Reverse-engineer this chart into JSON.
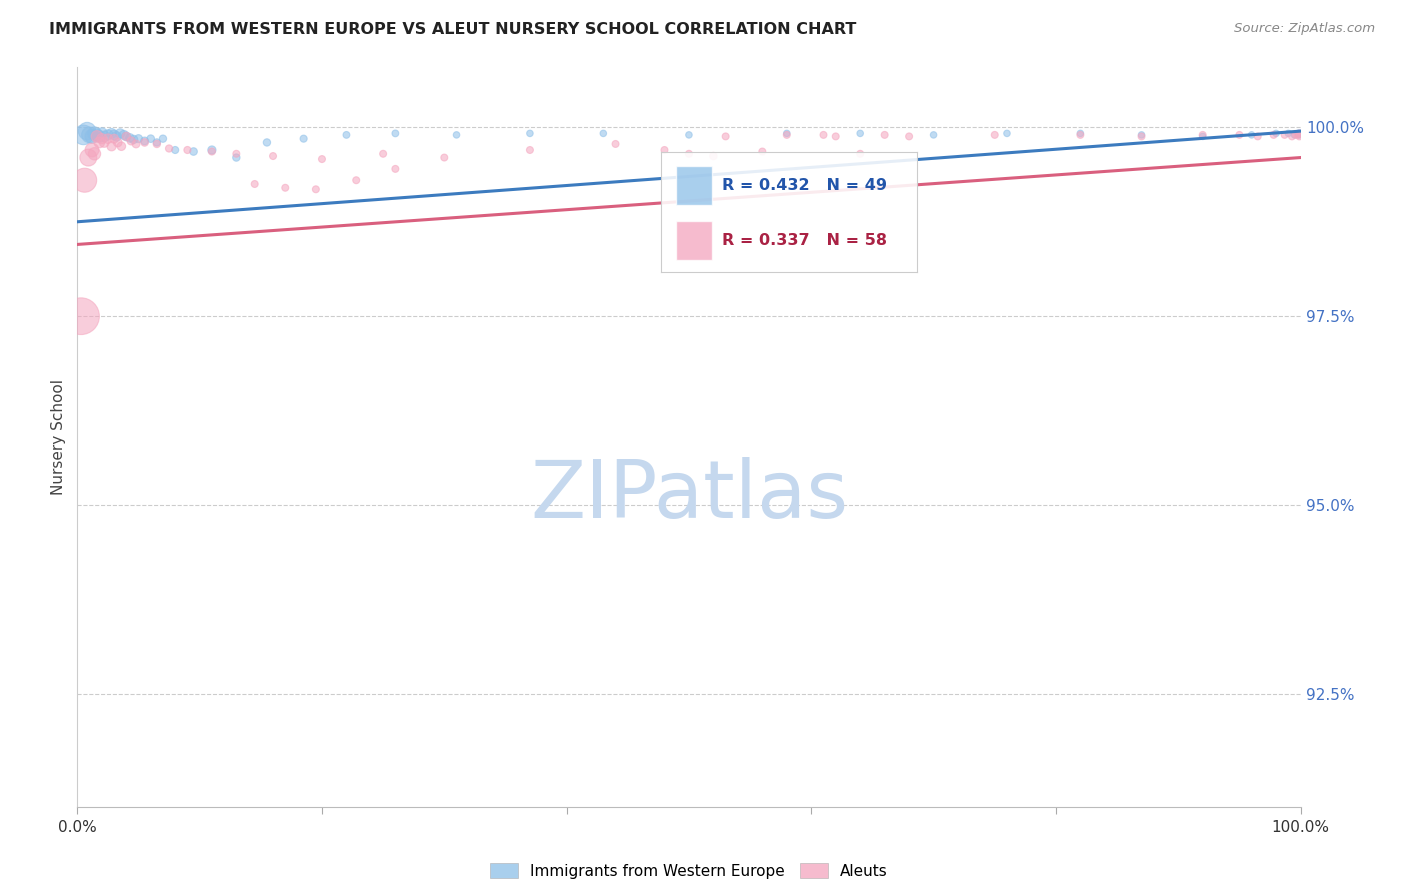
{
  "title": "IMMIGRANTS FROM WESTERN EUROPE VS ALEUT NURSERY SCHOOL CORRELATION CHART",
  "source": "Source: ZipAtlas.com",
  "ylabel": "Nursery School",
  "ytick_labels": [
    "100.0%",
    "97.5%",
    "95.0%",
    "92.5%"
  ],
  "ytick_values": [
    1.0,
    0.975,
    0.95,
    0.925
  ],
  "ymin": 0.91,
  "ymax": 1.008,
  "xmin": 0.0,
  "xmax": 1.0,
  "legend_blue_R": "0.432",
  "legend_blue_N": "49",
  "legend_pink_R": "0.337",
  "legend_pink_N": "58",
  "blue_color": "#8dbfe8",
  "pink_color": "#f4a5be",
  "blue_line_color": "#3c7bbf",
  "pink_line_color": "#d95f7e",
  "blue_line_x": [
    0.0,
    1.0
  ],
  "blue_line_y": [
    0.9875,
    0.9995
  ],
  "pink_line_x": [
    0.0,
    1.0
  ],
  "pink_line_y": [
    0.9845,
    0.996
  ],
  "watermark_text": "ZIPatlas",
  "watermark_color": "#c5d8ee",
  "blue_scatter_x": [
    0.005,
    0.008,
    0.01,
    0.012,
    0.014,
    0.016,
    0.018,
    0.02,
    0.022,
    0.025,
    0.028,
    0.03,
    0.032,
    0.035,
    0.038,
    0.04,
    0.043,
    0.046,
    0.05,
    0.055,
    0.06,
    0.065,
    0.07,
    0.08,
    0.095,
    0.11,
    0.13,
    0.155,
    0.185,
    0.22,
    0.26,
    0.31,
    0.37,
    0.43,
    0.5,
    0.58,
    0.64,
    0.7,
    0.76,
    0.82,
    0.87,
    0.92,
    0.96,
    0.98,
    0.99,
    0.995,
    0.998,
    0.999,
    0.999
  ],
  "blue_scatter_y": [
    0.999,
    0.9995,
    0.999,
    0.9988,
    0.9992,
    0.999,
    0.9988,
    0.9992,
    0.9988,
    0.999,
    0.9992,
    0.999,
    0.9988,
    0.9992,
    0.999,
    0.9988,
    0.9986,
    0.9984,
    0.9985,
    0.9982,
    0.9985,
    0.998,
    0.9985,
    0.997,
    0.9968,
    0.997,
    0.996,
    0.998,
    0.9985,
    0.999,
    0.9992,
    0.999,
    0.9992,
    0.9992,
    0.999,
    0.9992,
    0.9992,
    0.999,
    0.9992,
    0.9992,
    0.999,
    0.9988,
    0.999,
    0.9992,
    0.9992,
    0.999,
    0.9992,
    0.999,
    0.9992
  ],
  "blue_scatter_size": [
    200,
    160,
    130,
    100,
    90,
    80,
    70,
    65,
    60,
    55,
    50,
    50,
    48,
    45,
    42,
    40,
    38,
    36,
    34,
    32,
    30,
    28,
    28,
    26,
    30,
    35,
    28,
    28,
    26,
    24,
    24,
    22,
    22,
    22,
    22,
    22,
    22,
    22,
    22,
    22,
    22,
    22,
    22,
    22,
    22,
    22,
    22,
    22,
    22
  ],
  "pink_scatter_x": [
    0.003,
    0.006,
    0.009,
    0.012,
    0.014,
    0.016,
    0.018,
    0.02,
    0.022,
    0.025,
    0.028,
    0.03,
    0.033,
    0.036,
    0.04,
    0.044,
    0.048,
    0.055,
    0.065,
    0.075,
    0.09,
    0.11,
    0.13,
    0.16,
    0.2,
    0.25,
    0.3,
    0.37,
    0.44,
    0.52,
    0.61,
    0.68,
    0.75,
    0.82,
    0.87,
    0.92,
    0.95,
    0.965,
    0.978,
    0.987,
    0.993,
    0.996,
    0.998,
    0.999,
    0.999,
    0.53,
    0.58,
    0.62,
    0.66,
    0.64,
    0.48,
    0.5,
    0.56,
    0.145,
    0.17,
    0.195,
    0.228,
    0.26
  ],
  "pink_scatter_y": [
    0.975,
    0.993,
    0.996,
    0.997,
    0.9965,
    0.9988,
    0.998,
    0.9985,
    0.998,
    0.9985,
    0.9975,
    0.9985,
    0.998,
    0.9975,
    0.9988,
    0.9982,
    0.9978,
    0.998,
    0.9978,
    0.9972,
    0.997,
    0.9968,
    0.9965,
    0.9962,
    0.9958,
    0.9965,
    0.996,
    0.997,
    0.9978,
    0.9962,
    0.999,
    0.9988,
    0.999,
    0.999,
    0.9988,
    0.999,
    0.999,
    0.9988,
    0.999,
    0.999,
    0.9988,
    0.999,
    0.999,
    0.9988,
    0.9992,
    0.9988,
    0.999,
    0.9988,
    0.999,
    0.9965,
    0.997,
    0.9965,
    0.9968,
    0.9925,
    0.992,
    0.9918,
    0.993,
    0.9945
  ],
  "pink_scatter_size": [
    700,
    300,
    150,
    100,
    80,
    70,
    60,
    55,
    50,
    48,
    45,
    42,
    40,
    38,
    36,
    34,
    32,
    30,
    28,
    27,
    26,
    26,
    25,
    25,
    25,
    25,
    25,
    25,
    25,
    28,
    25,
    25,
    25,
    25,
    25,
    25,
    25,
    25,
    25,
    25,
    25,
    25,
    25,
    25,
    25,
    25,
    25,
    25,
    25,
    25,
    25,
    25,
    25,
    25,
    25,
    25,
    25,
    25
  ]
}
